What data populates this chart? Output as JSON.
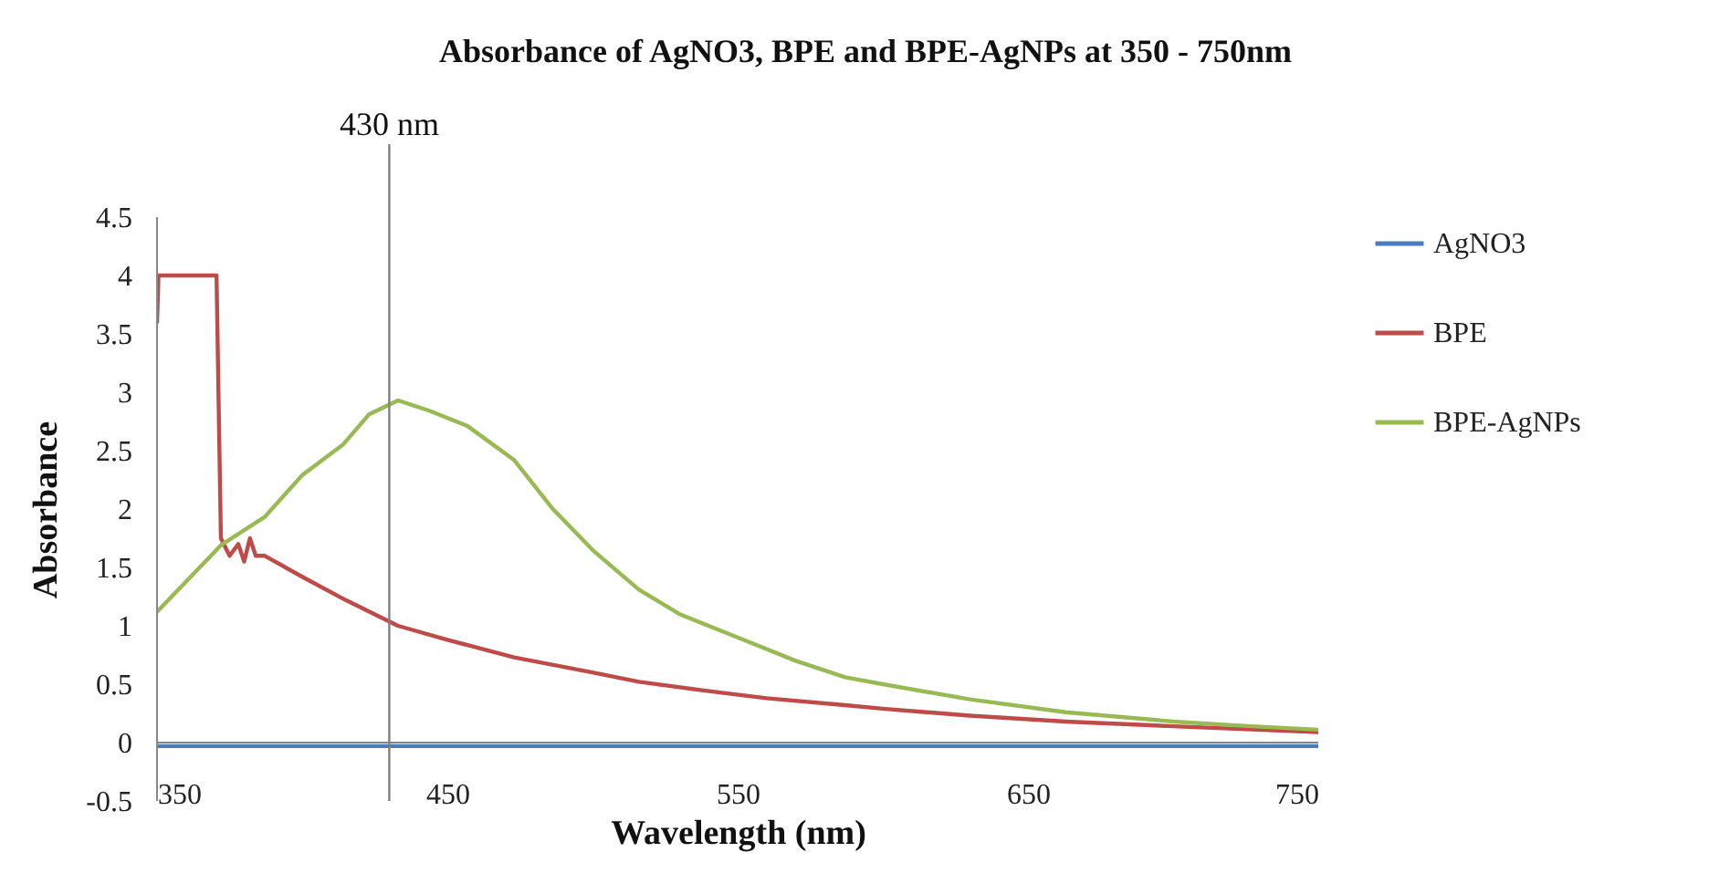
{
  "chart_data": {
    "type": "line",
    "title": "Absorbance of AgNO3, BPE and BPE-AgNPs at 350 - 750nm",
    "xlabel": "Wavelength (nm)",
    "ylabel": "Absorbance",
    "xlim": [
      350,
      750
    ],
    "xticks": [
      350,
      450,
      550,
      650,
      750
    ],
    "ylim": [
      -0.5,
      4.5
    ],
    "yticks": [
      -0.5,
      0,
      0.5,
      1,
      1.5,
      2,
      2.5,
      3,
      3.5,
      4,
      4.5
    ],
    "grid": false,
    "legend": "right",
    "marker": "none",
    "line_style": "solid",
    "ref_lines": [
      {
        "axis": "x",
        "value": 430,
        "label": "430 nm",
        "color": "#808080"
      }
    ],
    "series": [
      {
        "name": "AgNO3",
        "color": "#4a7ebb",
        "x": [
          350,
          400,
          450,
          500,
          550,
          600,
          650,
          700,
          750
        ],
        "values": [
          -0.03,
          -0.03,
          -0.03,
          -0.03,
          -0.03,
          -0.03,
          -0.03,
          -0.03,
          -0.03
        ]
      },
      {
        "name": "BPE",
        "color": "#be4b48",
        "x": [
          350,
          350.5,
          370.5,
          372,
          375,
          378,
          380,
          382,
          384,
          387,
          400,
          415,
          433,
          450,
          473,
          500,
          516,
          537,
          560,
          587,
          600,
          630,
          663,
          700,
          750
        ],
        "values": [
          3.6,
          4.0,
          4.0,
          1.75,
          1.6,
          1.7,
          1.55,
          1.75,
          1.6,
          1.6,
          1.42,
          1.22,
          1.0,
          0.88,
          0.73,
          0.6,
          0.52,
          0.45,
          0.38,
          0.32,
          0.29,
          0.23,
          0.18,
          0.14,
          0.09
        ]
      },
      {
        "name": "BPE-AgNPs",
        "color": "#98b954",
        "x": [
          350,
          372,
          387,
          400,
          414,
          423,
          433,
          444,
          457,
          473,
          486,
          500,
          516,
          530,
          550,
          570,
          587,
          600,
          630,
          663,
          700,
          727,
          750
        ],
        "values": [
          1.12,
          1.69,
          1.93,
          2.29,
          2.55,
          2.81,
          2.93,
          2.84,
          2.71,
          2.42,
          2.01,
          1.65,
          1.31,
          1.1,
          0.9,
          0.7,
          0.56,
          0.5,
          0.37,
          0.26,
          0.18,
          0.14,
          0.11
        ]
      }
    ]
  }
}
